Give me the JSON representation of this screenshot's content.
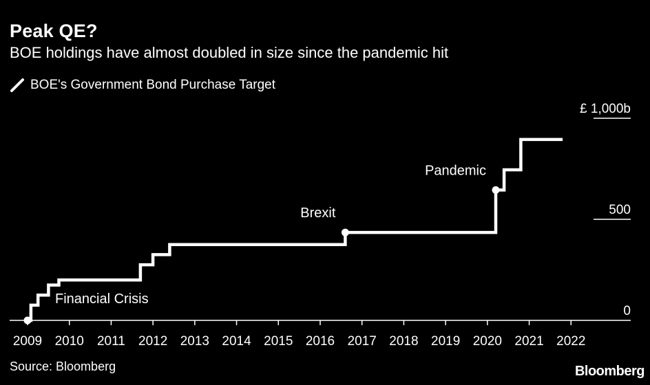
{
  "chart_data": {
    "type": "line",
    "title": "Peak QE?",
    "subtitle": "BOE holdings have almost doubled in size since the pandemic hit",
    "legend": [
      "BOE's Government Bond Purchase Target"
    ],
    "source": "Source: Bloomberg",
    "brand": "Bloomberg",
    "xlabel": "",
    "ylabel": "",
    "xlim": [
      2009.0,
      2023.0
    ],
    "ylim": [
      0,
      1000
    ],
    "x_ticks": [
      "2009",
      "2010",
      "2011",
      "2012",
      "2013",
      "2014",
      "2015",
      "2016",
      "2017",
      "2018",
      "2019",
      "2020",
      "2021",
      "2022"
    ],
    "y_ticks": [
      {
        "value": 0,
        "label": "0"
      },
      {
        "value": 500,
        "label": "500"
      },
      {
        "value": 1000,
        "label": "£ 1,000b"
      }
    ],
    "series": [
      {
        "name": "BOE's Government Bond Purchase Target",
        "points": [
          [
            2009.0,
            0
          ],
          [
            2009.08,
            0
          ],
          [
            2009.08,
            75
          ],
          [
            2009.25,
            75
          ],
          [
            2009.25,
            125
          ],
          [
            2009.5,
            125
          ],
          [
            2009.5,
            175
          ],
          [
            2009.75,
            175
          ],
          [
            2009.75,
            200
          ],
          [
            2011.7,
            200
          ],
          [
            2011.7,
            275
          ],
          [
            2012.0,
            275
          ],
          [
            2012.0,
            325
          ],
          [
            2012.4,
            325
          ],
          [
            2012.4,
            375
          ],
          [
            2016.6,
            375
          ],
          [
            2016.6,
            435
          ],
          [
            2020.2,
            435
          ],
          [
            2020.2,
            645
          ],
          [
            2020.4,
            645
          ],
          [
            2020.4,
            745
          ],
          [
            2020.8,
            745
          ],
          [
            2020.8,
            895
          ],
          [
            2021.8,
            895
          ]
        ]
      }
    ],
    "annotations": [
      {
        "label": "Financial Crisis",
        "x": 2009.0,
        "y": 0
      },
      {
        "label": "Brexit",
        "x": 2016.6,
        "y": 435
      },
      {
        "label": "Pandemic",
        "x": 2020.2,
        "y": 645
      }
    ],
    "line_color": "#ffffff",
    "background_color": "#000000"
  }
}
